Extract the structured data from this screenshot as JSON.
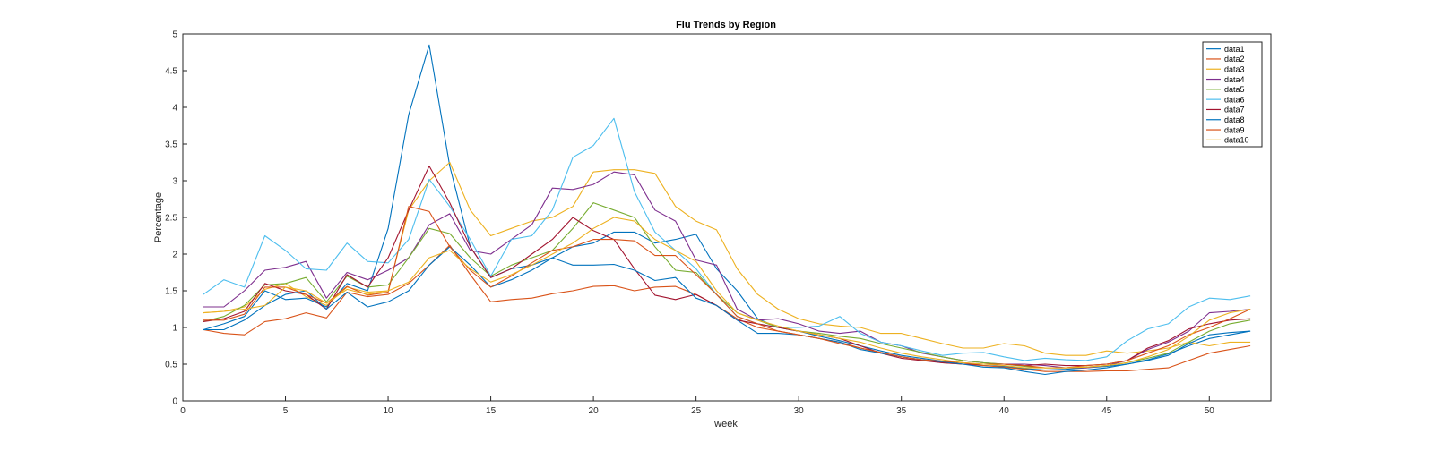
{
  "chart_data": {
    "type": "line",
    "title": "Flu Trends by Region",
    "xlabel": "week",
    "ylabel": "Percentage",
    "xlim": [
      0,
      53
    ],
    "ylim": [
      0,
      5
    ],
    "xticks": [
      0,
      5,
      10,
      15,
      20,
      25,
      30,
      35,
      40,
      45,
      50
    ],
    "yticks": [
      0,
      0.5,
      1,
      1.5,
      2,
      2.5,
      3,
      3.5,
      4,
      4.5,
      5
    ],
    "grid": false,
    "legend_position": "top-right",
    "x": [
      1,
      2,
      3,
      4,
      5,
      6,
      7,
      8,
      9,
      10,
      11,
      12,
      13,
      14,
      15,
      16,
      17,
      18,
      19,
      20,
      21,
      22,
      23,
      24,
      25,
      26,
      27,
      28,
      29,
      30,
      31,
      32,
      33,
      34,
      35,
      36,
      37,
      38,
      39,
      40,
      41,
      42,
      43,
      44,
      45,
      46,
      47,
      48,
      49,
      50,
      51,
      52
    ],
    "series": [
      {
        "name": "data1",
        "color": "#0072BD",
        "values": [
          0.97,
          1.05,
          1.15,
          1.5,
          1.38,
          1.4,
          1.28,
          1.6,
          1.5,
          2.35,
          3.9,
          4.85,
          3.2,
          2.1,
          1.68,
          1.8,
          1.85,
          1.95,
          2.1,
          2.15,
          2.3,
          2.3,
          2.15,
          2.2,
          2.27,
          1.8,
          1.5,
          1.12,
          1.0,
          0.95,
          0.88,
          0.82,
          0.75,
          0.68,
          0.62,
          0.58,
          0.54,
          0.5,
          0.48,
          0.47,
          0.44,
          0.42,
          0.43,
          0.45,
          0.47,
          0.5,
          0.56,
          0.64,
          0.75,
          0.85,
          0.9,
          0.95
        ]
      },
      {
        "name": "data2",
        "color": "#D95319",
        "values": [
          0.97,
          0.92,
          0.9,
          1.08,
          1.12,
          1.2,
          1.13,
          1.48,
          1.42,
          1.45,
          1.6,
          1.85,
          2.12,
          1.72,
          1.35,
          1.38,
          1.4,
          1.46,
          1.5,
          1.56,
          1.57,
          1.5,
          1.55,
          1.56,
          1.45,
          1.3,
          1.12,
          1.0,
          0.95,
          0.9,
          0.85,
          0.8,
          0.72,
          0.66,
          0.6,
          0.56,
          0.52,
          0.5,
          0.48,
          0.46,
          0.43,
          0.4,
          0.4,
          0.4,
          0.41,
          0.41,
          0.43,
          0.45,
          0.55,
          0.65,
          0.7,
          0.75
        ]
      },
      {
        "name": "data3",
        "color": "#EDB120",
        "values": [
          1.2,
          1.22,
          1.28,
          1.52,
          1.6,
          1.42,
          1.3,
          1.55,
          1.48,
          1.5,
          2.6,
          3.0,
          3.25,
          2.6,
          2.25,
          2.35,
          2.45,
          2.5,
          2.65,
          3.12,
          3.15,
          3.15,
          3.1,
          2.65,
          2.45,
          2.33,
          1.8,
          1.45,
          1.25,
          1.12,
          1.05,
          1.02,
          1.0,
          0.92,
          0.92,
          0.85,
          0.78,
          0.72,
          0.72,
          0.78,
          0.75,
          0.65,
          0.62,
          0.62,
          0.68,
          0.65,
          0.68,
          0.72,
          0.8,
          0.75,
          0.8,
          0.8
        ]
      },
      {
        "name": "data4",
        "color": "#7E2F8E",
        "values": [
          1.28,
          1.28,
          1.5,
          1.78,
          1.82,
          1.9,
          1.4,
          1.75,
          1.65,
          1.78,
          1.95,
          2.4,
          2.55,
          2.05,
          2.0,
          2.2,
          2.4,
          2.9,
          2.88,
          2.95,
          3.12,
          3.08,
          2.6,
          2.45,
          1.92,
          1.85,
          1.25,
          1.1,
          1.12,
          1.05,
          0.95,
          0.92,
          0.95,
          0.8,
          0.75,
          0.65,
          0.6,
          0.55,
          0.52,
          0.5,
          0.5,
          0.48,
          0.45,
          0.45,
          0.48,
          0.55,
          0.7,
          0.8,
          0.95,
          1.2,
          1.22,
          1.25
        ]
      },
      {
        "name": "data5",
        "color": "#77AC30",
        "values": [
          1.08,
          1.15,
          1.3,
          1.58,
          1.6,
          1.68,
          1.35,
          1.7,
          1.55,
          1.58,
          1.95,
          2.35,
          2.28,
          1.95,
          1.7,
          1.85,
          1.95,
          2.05,
          2.35,
          2.7,
          2.6,
          2.5,
          2.1,
          1.78,
          1.75,
          1.45,
          1.2,
          1.1,
          1.0,
          0.95,
          0.92,
          0.88,
          0.85,
          0.78,
          0.72,
          0.66,
          0.6,
          0.55,
          0.52,
          0.5,
          0.47,
          0.45,
          0.45,
          0.46,
          0.48,
          0.52,
          0.58,
          0.65,
          0.8,
          0.95,
          1.05,
          1.1
        ]
      },
      {
        "name": "data6",
        "color": "#4DBEEE",
        "values": [
          1.45,
          1.65,
          1.55,
          2.25,
          2.05,
          1.8,
          1.78,
          2.15,
          1.9,
          1.88,
          2.2,
          3.02,
          2.65,
          2.2,
          1.7,
          2.2,
          2.25,
          2.6,
          3.32,
          3.48,
          3.85,
          2.85,
          2.3,
          2.05,
          1.8,
          1.45,
          1.15,
          1.05,
          1.0,
          1.0,
          1.02,
          1.15,
          0.92,
          0.8,
          0.75,
          0.68,
          0.62,
          0.65,
          0.66,
          0.6,
          0.55,
          0.58,
          0.56,
          0.55,
          0.6,
          0.82,
          0.98,
          1.05,
          1.28,
          1.4,
          1.38,
          1.43
        ]
      },
      {
        "name": "data7",
        "color": "#A2142F",
        "values": [
          1.08,
          1.12,
          1.22,
          1.6,
          1.5,
          1.45,
          1.25,
          1.72,
          1.55,
          1.95,
          2.6,
          3.2,
          2.7,
          2.1,
          1.68,
          1.8,
          2.0,
          2.2,
          2.5,
          2.32,
          2.2,
          1.8,
          1.44,
          1.38,
          1.45,
          1.3,
          1.1,
          1.05,
          1.0,
          0.95,
          0.9,
          0.85,
          0.75,
          0.65,
          0.58,
          0.55,
          0.52,
          0.5,
          0.5,
          0.5,
          0.48,
          0.5,
          0.48,
          0.48,
          0.5,
          0.55,
          0.72,
          0.82,
          0.98,
          1.05,
          1.1,
          1.12
        ]
      },
      {
        "name": "data8",
        "color": "#0072BD",
        "values": [
          0.97,
          0.97,
          1.1,
          1.3,
          1.45,
          1.5,
          1.25,
          1.48,
          1.28,
          1.35,
          1.5,
          1.85,
          2.1,
          1.85,
          1.55,
          1.65,
          1.78,
          1.95,
          1.85,
          1.85,
          1.86,
          1.78,
          1.64,
          1.68,
          1.4,
          1.3,
          1.1,
          0.92,
          0.92,
          0.9,
          0.85,
          0.8,
          0.7,
          0.65,
          0.6,
          0.56,
          0.53,
          0.5,
          0.46,
          0.45,
          0.4,
          0.36,
          0.4,
          0.42,
          0.45,
          0.5,
          0.55,
          0.62,
          0.78,
          0.9,
          0.93,
          0.95
        ]
      },
      {
        "name": "data9",
        "color": "#D95319",
        "values": [
          1.1,
          1.1,
          1.18,
          1.55,
          1.55,
          1.45,
          1.33,
          1.56,
          1.44,
          1.48,
          2.65,
          2.58,
          2.1,
          1.78,
          1.55,
          1.7,
          1.88,
          2.05,
          2.1,
          2.2,
          2.2,
          2.18,
          1.98,
          1.98,
          1.72,
          1.45,
          1.15,
          1.05,
          0.95,
          0.9,
          0.85,
          0.78,
          0.72,
          0.66,
          0.6,
          0.56,
          0.54,
          0.52,
          0.5,
          0.5,
          0.48,
          0.45,
          0.45,
          0.48,
          0.5,
          0.55,
          0.65,
          0.75,
          0.9,
          1.0,
          1.12,
          1.25
        ]
      },
      {
        "name": "data10",
        "color": "#EDB120",
        "values": [
          1.2,
          1.22,
          1.25,
          1.3,
          1.55,
          1.5,
          1.33,
          1.52,
          1.45,
          1.5,
          1.62,
          1.95,
          2.05,
          1.8,
          1.62,
          1.72,
          1.85,
          2.0,
          2.15,
          2.35,
          2.5,
          2.45,
          2.2,
          2.05,
          1.9,
          1.5,
          1.2,
          1.1,
          1.02,
          0.95,
          0.9,
          0.85,
          0.8,
          0.72,
          0.65,
          0.6,
          0.56,
          0.52,
          0.5,
          0.48,
          0.45,
          0.45,
          0.45,
          0.46,
          0.48,
          0.52,
          0.6,
          0.7,
          0.88,
          1.1,
          1.2,
          1.25
        ]
      }
    ]
  }
}
